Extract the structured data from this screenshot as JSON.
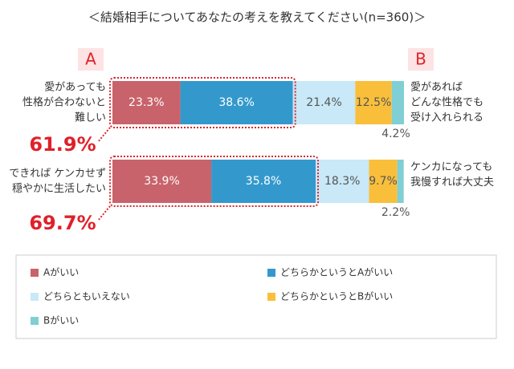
{
  "chart_data": {
    "type": "stacked-bar-horizontal",
    "title": "＜結婚相手についてあなたの考えを教えてください(n=360)＞",
    "side_labels": [
      "A",
      "B"
    ],
    "left_labels": [
      [
        "愛があっても",
        "性格が合わないと",
        "難しい"
      ],
      [
        "できれば ケンカせず",
        "穏やかに生活したい"
      ]
    ],
    "right_labels": [
      [
        "愛があれば",
        "どんな性格でも",
        "受け入れられる"
      ],
      [
        "ケンカになっても",
        "我慢すれば大丈夫"
      ]
    ],
    "totals": {
      "values": [
        61.9,
        69.7
      ],
      "value_labels": [
        "61.9%",
        "69.7%"
      ]
    },
    "xlim": [
      0,
      100
    ],
    "series": [
      {
        "name": "Aがいい",
        "color": "#c9636b",
        "values": [
          23.3,
          33.9
        ],
        "value_labels": [
          "23.3%",
          "33.9%"
        ]
      },
      {
        "name": "どちらかというとAがいい",
        "color": "#3399cc",
        "values": [
          38.6,
          35.8
        ],
        "value_labels": [
          "38.6%",
          "35.8%"
        ]
      },
      {
        "name": "どちらともいえない",
        "color": "#c9e8f8",
        "values": [
          21.4,
          18.3
        ],
        "value_labels": [
          "21.4%",
          "18.3%"
        ]
      },
      {
        "name": "どちらかというとBがいい",
        "color": "#f9bf3b",
        "values": [
          12.5,
          9.7
        ],
        "value_labels": [
          "12.5%",
          "9.7%"
        ]
      },
      {
        "name": "Bがいい",
        "color": "#7fcfd4",
        "values": [
          4.2,
          2.2
        ],
        "value_labels": [
          "4.2%",
          "2.2%"
        ]
      }
    ]
  }
}
